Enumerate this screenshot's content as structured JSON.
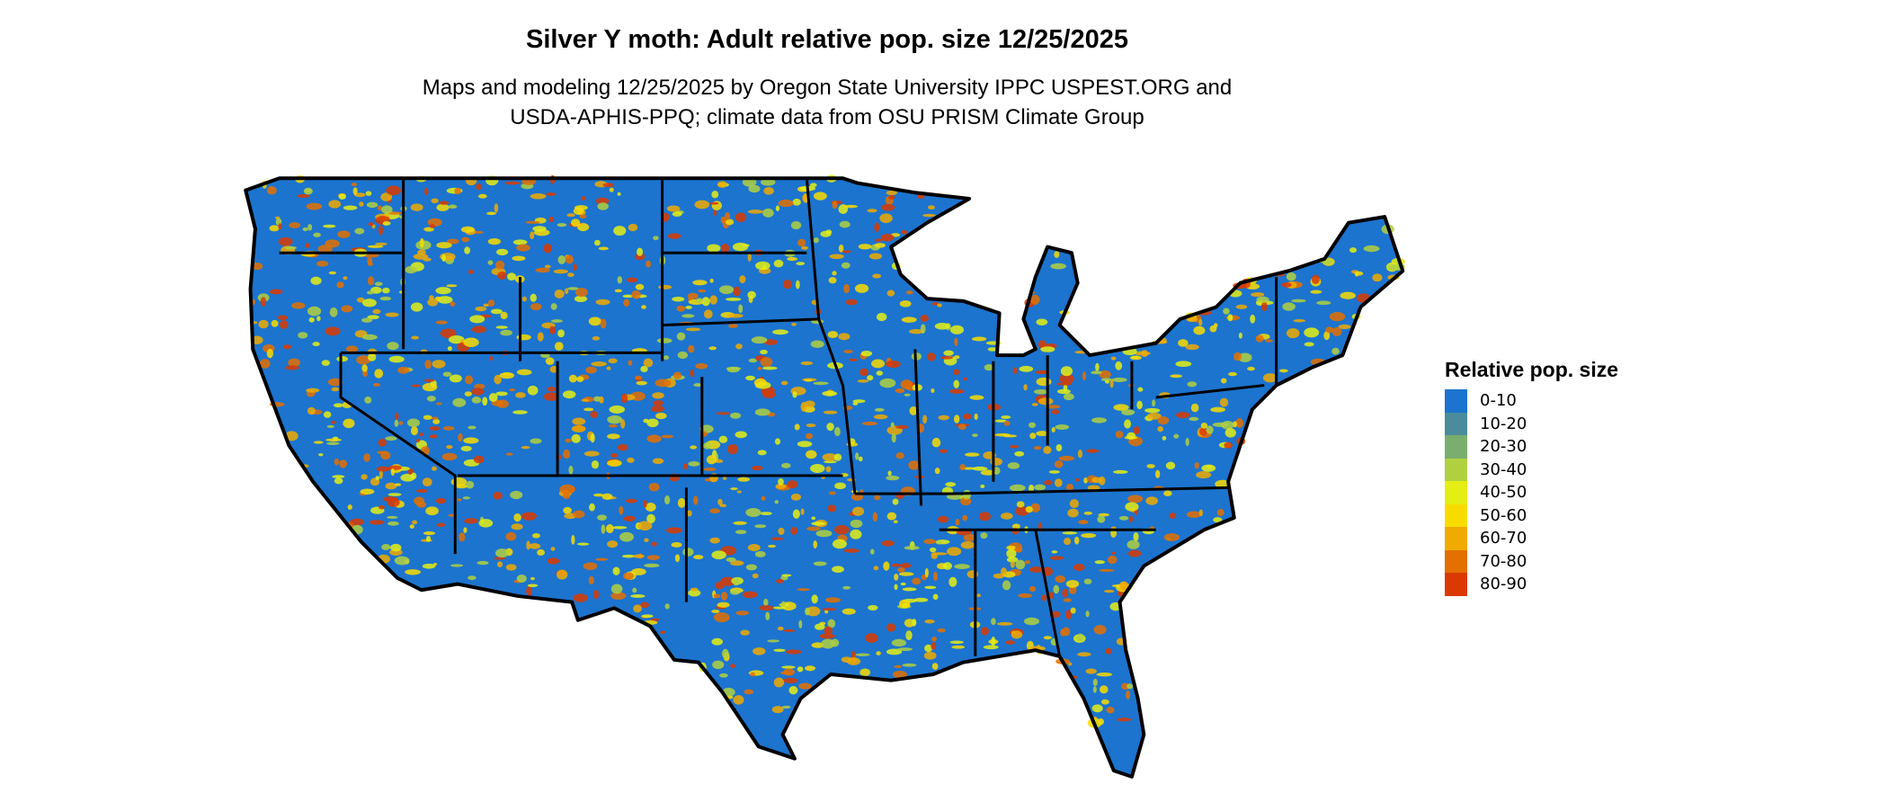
{
  "title": "Silver Y moth: Adult relative pop. size 12/25/2025",
  "subtitle_lines": [
    "Maps and modeling 12/25/2025 by Oregon State University IPPC USPEST.ORG and",
    "USDA-APHIS-PPQ; climate data from OSU PRISM Climate Group"
  ],
  "map": {
    "region": "Contiguous United States",
    "background_class_color": "#1874CD"
  },
  "legend": {
    "title": "Relative pop. size",
    "items": [
      {
        "label": "0-10",
        "color": "#1C74CE"
      },
      {
        "label": "10-20",
        "color": "#4A8C9C"
      },
      {
        "label": "20-30",
        "color": "#7AAE6E"
      },
      {
        "label": "30-40",
        "color": "#B0D040"
      },
      {
        "label": "40-50",
        "color": "#E4EE14"
      },
      {
        "label": "50-60",
        "color": "#F8DC00"
      },
      {
        "label": "60-70",
        "color": "#F0AA00"
      },
      {
        "label": "70-80",
        "color": "#E47000"
      },
      {
        "label": "80-90",
        "color": "#DA3A00"
      }
    ]
  }
}
